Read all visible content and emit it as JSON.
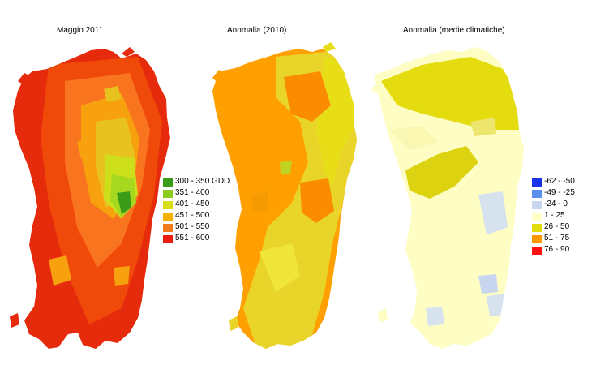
{
  "panels": [
    {
      "title": "Maggio 2011",
      "fills": [
        "#e62a0c",
        "#f04a0a",
        "#f8741e",
        "#f6a10d",
        "#e8c21e",
        "#cddf1a",
        "#a6d820",
        "#3a9c18"
      ]
    },
    {
      "title": "Anomalia (2010)",
      "fills": [
        "#ffa000",
        "#fb8c00",
        "#f59a00",
        "#e9d52a",
        "#e8de18",
        "#f0e63a",
        "#c0d322",
        "#d4e124"
      ]
    },
    {
      "title": "Anomalia (medie climatiche)",
      "fills": [
        "#fdfdc4",
        "#ffffc8",
        "#faf7b3",
        "#e5dc10",
        "#dcd20f",
        "#d7e2ef",
        "#c7d5ee",
        "#ede66e"
      ]
    }
  ],
  "legend_gdd": {
    "items": [
      {
        "label": "300 - 350 GDD",
        "color": "#3a9c18"
      },
      {
        "label": "351 - 400",
        "color": "#8acd1e"
      },
      {
        "label": "401 - 450",
        "color": "#d8dd1a"
      },
      {
        "label": "451 - 500",
        "color": "#f6b000"
      },
      {
        "label": "501 - 550",
        "color": "#f07a1c"
      },
      {
        "label": "551 - 600",
        "color": "#ee1c0c"
      }
    ]
  },
  "legend_anomaly": {
    "items": [
      {
        "label": "-62 - -50",
        "color": "#1a33e8"
      },
      {
        "label": "-49 - -25",
        "color": "#5a8ff0"
      },
      {
        "label": "-24 - 0",
        "color": "#c7d5ee"
      },
      {
        "label": "1 - 25",
        "color": "#ffffc8"
      },
      {
        "label": "26 - 50",
        "color": "#e0dc10"
      },
      {
        "label": "51 - 75",
        "color": "#ff9800"
      },
      {
        "label": "76 - 90",
        "color": "#ff1010"
      }
    ]
  }
}
